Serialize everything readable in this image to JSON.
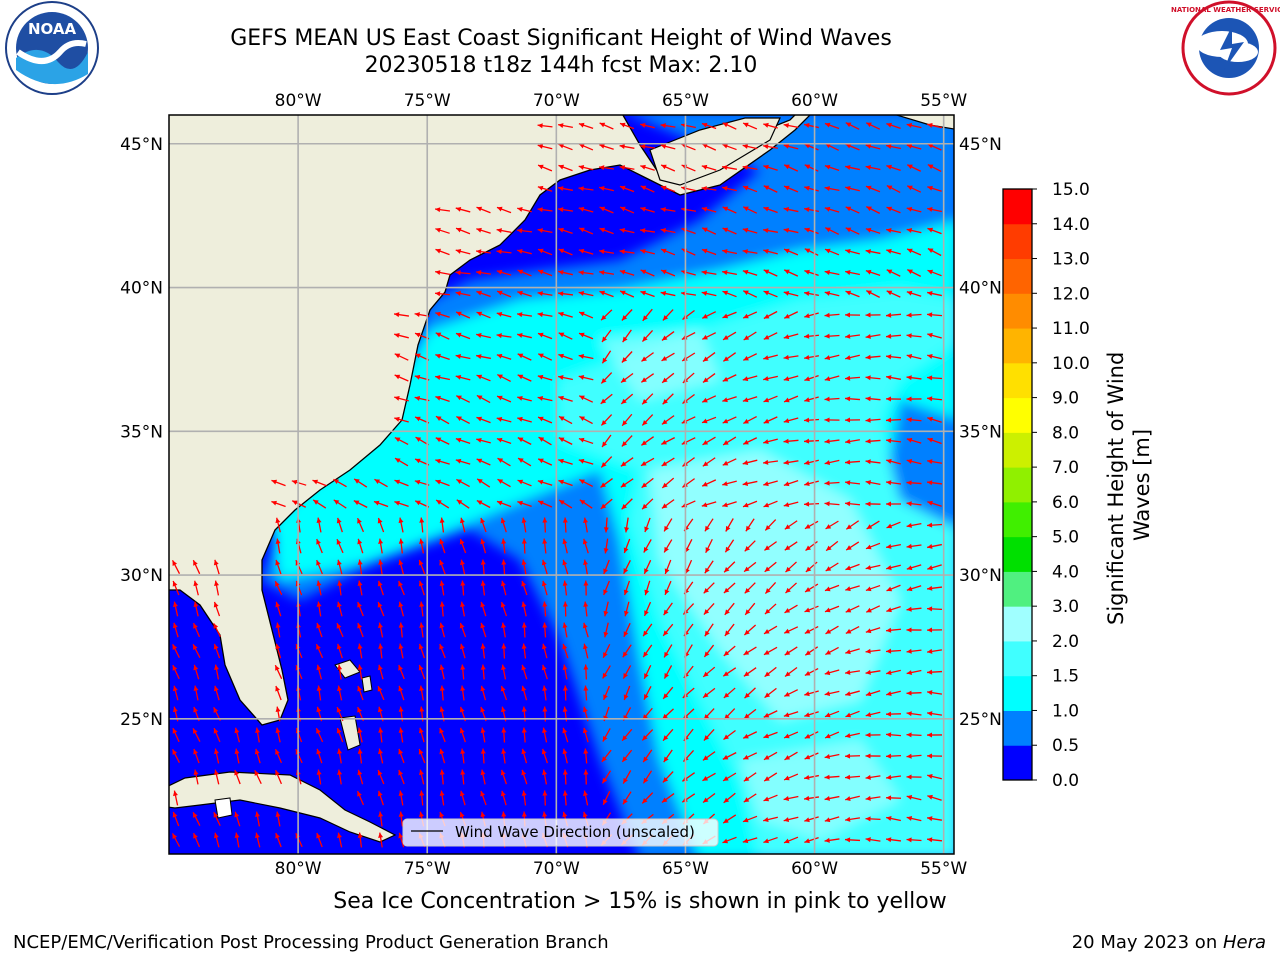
{
  "title": {
    "line1": "GEFS MEAN US East Coast Significant Height of Wind Waves",
    "line2": "20230518 t18z 144h fcst   Max: 2.10"
  },
  "map": {
    "lon_labels": [
      "80°W",
      "75°W",
      "70°W",
      "65°W",
      "60°W",
      "55°W"
    ],
    "lat_labels": [
      "45°N",
      "40°N",
      "35°N",
      "30°N",
      "25°N"
    ],
    "lon_range": [
      -85,
      -54.6
    ],
    "lat_range": [
      20.3,
      46
    ],
    "legend_label": "Wind Wave Direction (unscaled)",
    "vector_color": "#ff0000",
    "land_color": "#eeeedc",
    "grid_color": "#b0b0b0"
  },
  "colorbar": {
    "label_line1": "Significant Height of Wind",
    "label_line2": "Waves [m]",
    "ticks": [
      "0.0",
      "0.5",
      "1.0",
      "1.5",
      "2.0",
      "3.0",
      "4.0",
      "5.0",
      "6.0",
      "7.0",
      "8.0",
      "9.0",
      "10.0",
      "11.0",
      "12.0",
      "13.0",
      "14.0",
      "15.0"
    ],
    "colors": [
      "#0000ff",
      "#0080ff",
      "#00ffff",
      "#40ffff",
      "#a0ffff",
      "#50f080",
      "#00e000",
      "#40ef00",
      "#90f000",
      "#ccf000",
      "#ffff00",
      "#ffe000",
      "#ffb400",
      "#ff8c00",
      "#ff6400",
      "#ff3c00",
      "#ff0000"
    ]
  },
  "logos": {
    "left": "NOAA",
    "right": "NATIONAL WEATHER SERVICE"
  },
  "caption": "Sea Ice Concentration > 15% is shown in pink to yellow",
  "footer": {
    "left": "NCEP/EMC/Verification Post Processing Product Generation Branch",
    "right_prefix": "20 May 2023 on ",
    "right_host": "Hera"
  }
}
